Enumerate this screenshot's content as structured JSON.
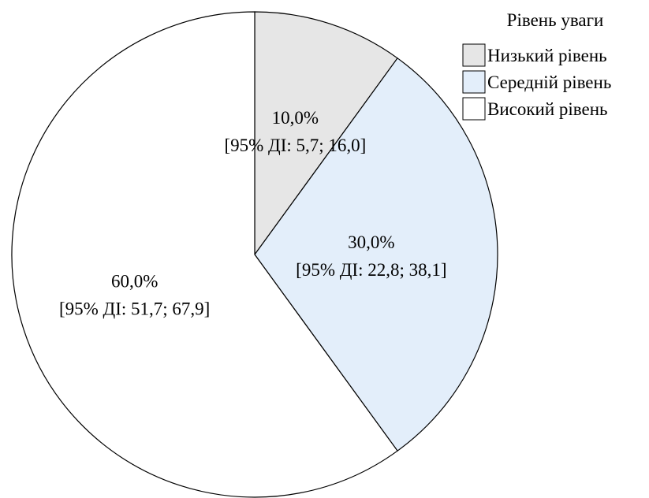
{
  "chart_data": {
    "type": "pie",
    "legend": {
      "title": "Рівень уваги",
      "placement": "top-right"
    },
    "slices": [
      {
        "name": "Низький рівень",
        "value": 10.0,
        "label": "10,0%",
        "ci": "[95% ДІ: 5,7; 16,0]",
        "color": "#e6e6e6"
      },
      {
        "name": "Середній рівень",
        "value": 30.0,
        "label": "30,0%",
        "ci": "[95% ДІ: 22,8; 38,1]",
        "color": "#e3eefa"
      },
      {
        "name": "Високий рівень",
        "value": 60.0,
        "label": "60,0%",
        "ci": "[95% ДІ: 51,7; 67,9]",
        "color": "#ffffff"
      }
    ],
    "start_angle_deg": 0,
    "direction": "clockwise"
  }
}
